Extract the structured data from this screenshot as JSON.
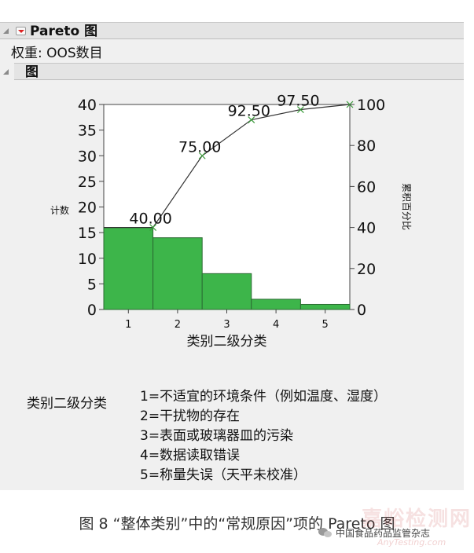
{
  "header": {
    "title": "Pareto 图",
    "weight_label": "权重: OOS数目"
  },
  "subheader": {
    "title": "图"
  },
  "chart_data": {
    "type": "bar",
    "categories": [
      "1",
      "2",
      "3",
      "4",
      "5"
    ],
    "values": [
      16,
      14,
      7,
      2,
      1
    ],
    "cumulative_percent": [
      40.0,
      75.0,
      92.5,
      97.5,
      100.0
    ],
    "point_labels": [
      "40.00",
      "75.00",
      "92.50",
      "97.50",
      ""
    ],
    "xlabel": "类别二级分类",
    "ylabel": "计数",
    "y2label": "累积百分比",
    "ylim": [
      0,
      40
    ],
    "y2lim": [
      0,
      100
    ],
    "yticks": [
      "0",
      "5",
      "10",
      "15",
      "20",
      "25",
      "30",
      "35",
      "40"
    ],
    "y2ticks": [
      "0",
      "20",
      "40",
      "60",
      "80",
      "100"
    ],
    "bar_color": "#3db54a",
    "line_color": "#333333",
    "marker_color": "#3a9a3a"
  },
  "legend": {
    "title": "类别二级分类",
    "items": [
      "1=不适宜的环境条件（例如温度、湿度）",
      "2=干扰物的存在",
      "3=表面或玻璃器皿的污染",
      "4=数据读取错误",
      "5=称量失误（天平未校准）"
    ]
  },
  "caption": "图 8 “整体类别”中的“常规原因”项的 Pareto 图",
  "watermark": {
    "site": "嘉峪检测网",
    "url": "AnyTesting.com",
    "account": "中国食品药品监管杂志"
  }
}
